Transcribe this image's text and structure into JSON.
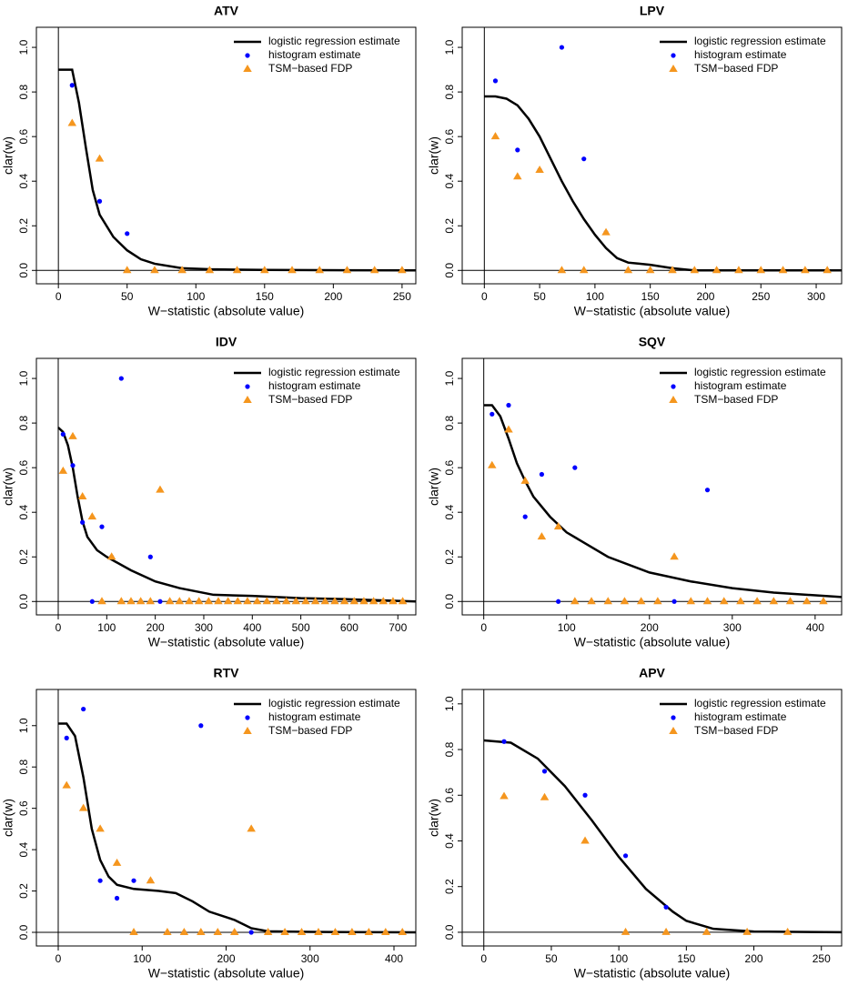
{
  "chart_data": [
    {
      "type": "scatter",
      "title": "ATV",
      "xlabel": "W−statistic (absolute value)",
      "ylabel": "clar(w)",
      "xlim": [
        -16,
        260
      ],
      "ylim": [
        -0.06,
        1.09
      ],
      "xticks": [
        0,
        50,
        100,
        150,
        200,
        250
      ],
      "yticks": [
        {
          "value": 0,
          "label": "0.0"
        },
        0.2,
        0.4,
        0.6,
        0.8,
        {
          "value": 1,
          "label": "1.0"
        }
      ],
      "legend": "topright",
      "series": [
        {
          "name": "logistic regression estimate",
          "color": "#000000",
          "marker": "line",
          "x": [
            0,
            10,
            15,
            20,
            25,
            30,
            40,
            50,
            60,
            70,
            90,
            110,
            150,
            260
          ],
          "values": [
            0.9,
            0.9,
            0.75,
            0.55,
            0.36,
            0.25,
            0.15,
            0.09,
            0.05,
            0.03,
            0.01,
            0.005,
            0.002,
            0
          ]
        },
        {
          "name": "histogram estimate",
          "color": "#0000ff",
          "marker": "circle",
          "x": [
            10,
            30,
            50,
            70,
            90,
            110,
            130,
            150,
            170,
            190,
            210,
            230,
            250
          ],
          "values": [
            0.83,
            0.31,
            0.165,
            0,
            0,
            0,
            0,
            0,
            0,
            0,
            0,
            0,
            0
          ]
        },
        {
          "name": "TSM−based FDP",
          "color": "#f5961e",
          "marker": "triangle",
          "x": [
            10,
            30,
            50,
            70,
            90,
            110,
            130,
            150,
            170,
            190,
            210,
            230,
            250
          ],
          "values": [
            0.66,
            0.5,
            0,
            0,
            0,
            0,
            0,
            0,
            0,
            0,
            0,
            0,
            0
          ]
        }
      ]
    },
    {
      "type": "scatter",
      "title": "LPV",
      "xlabel": "W−statistic (absolute value)",
      "ylabel": "clar(w)",
      "xlim": [
        -20,
        323
      ],
      "ylim": [
        -0.06,
        1.09
      ],
      "xticks": [
        0,
        50,
        100,
        150,
        200,
        250,
        300
      ],
      "yticks": [
        {
          "value": 0,
          "label": "0.0"
        },
        0.2,
        0.4,
        0.6,
        0.8,
        {
          "value": 1,
          "label": "1.0"
        }
      ],
      "legend": "topright",
      "series": [
        {
          "name": "logistic regression estimate",
          "color": "#000000",
          "marker": "line",
          "x": [
            0,
            10,
            20,
            30,
            40,
            50,
            60,
            70,
            80,
            90,
            100,
            110,
            120,
            130,
            140,
            150,
            170,
            190,
            323
          ],
          "values": [
            0.78,
            0.78,
            0.77,
            0.74,
            0.68,
            0.6,
            0.5,
            0.4,
            0.31,
            0.23,
            0.16,
            0.1,
            0.055,
            0.035,
            0.03,
            0.025,
            0.01,
            0,
            0
          ]
        },
        {
          "name": "histogram estimate",
          "color": "#0000ff",
          "marker": "circle",
          "x": [
            10,
            30,
            50,
            70,
            90,
            110,
            130,
            150,
            170,
            190,
            210,
            230,
            250,
            270,
            290,
            310
          ],
          "values": [
            0.85,
            0.54,
            0.45,
            1.0,
            0.5,
            0.17,
            0,
            0,
            0,
            0,
            0,
            0,
            0,
            0,
            0,
            0
          ]
        },
        {
          "name": "TSM−based FDP",
          "color": "#f5961e",
          "marker": "triangle",
          "x": [
            10,
            30,
            50,
            70,
            90,
            110,
            130,
            150,
            170,
            190,
            210,
            230,
            250,
            270,
            290,
            310
          ],
          "values": [
            0.6,
            0.42,
            0.45,
            0,
            0,
            0.17,
            0,
            0,
            0,
            0,
            0,
            0,
            0,
            0,
            0,
            0
          ]
        }
      ]
    },
    {
      "type": "scatter",
      "title": "IDV",
      "xlabel": "W−statistic (absolute value)",
      "ylabel": "clar(w)",
      "xlim": [
        -45,
        737
      ],
      "ylim": [
        -0.06,
        1.09
      ],
      "xticks": [
        0,
        100,
        200,
        300,
        400,
        500,
        600,
        700
      ],
      "yticks": [
        {
          "value": 0,
          "label": "0.0"
        },
        0.2,
        0.4,
        0.6,
        0.8,
        {
          "value": 1,
          "label": "1.0"
        }
      ],
      "legend": "topright",
      "series": [
        {
          "name": "logistic regression estimate",
          "color": "#000000",
          "marker": "line",
          "x": [
            0,
            10,
            20,
            30,
            40,
            50,
            60,
            80,
            100,
            150,
            200,
            250,
            320,
            400,
            500,
            600,
            737
          ],
          "values": [
            0.78,
            0.76,
            0.7,
            0.6,
            0.47,
            0.36,
            0.29,
            0.23,
            0.2,
            0.14,
            0.09,
            0.06,
            0.03,
            0.025,
            0.015,
            0.01,
            0
          ]
        },
        {
          "name": "histogram estimate",
          "color": "#0000ff",
          "marker": "circle",
          "x": [
            10,
            30,
            50,
            70,
            90,
            110,
            130,
            150,
            170,
            190,
            210,
            230,
            250,
            270,
            290,
            310,
            330,
            350,
            370,
            390,
            410,
            430,
            450,
            470,
            490,
            510,
            530,
            550,
            570,
            590,
            610,
            630,
            650,
            670,
            690,
            710
          ],
          "values": [
            0.75,
            0.61,
            0.355,
            0,
            0.335,
            0.2,
            1.0,
            0,
            0,
            0.2,
            0,
            0,
            0,
            0,
            0,
            0,
            0,
            0,
            0,
            0,
            0,
            0,
            0,
            0,
            0,
            0,
            0,
            0,
            0,
            0,
            0,
            0,
            0,
            0,
            0,
            0
          ]
        },
        {
          "name": "TSM−based FDP",
          "color": "#f5961e",
          "marker": "triangle",
          "x": [
            10,
            30,
            50,
            70,
            90,
            110,
            130,
            150,
            170,
            190,
            210,
            230,
            250,
            270,
            290,
            310,
            330,
            350,
            370,
            390,
            410,
            430,
            450,
            470,
            490,
            510,
            530,
            550,
            570,
            590,
            610,
            630,
            650,
            670,
            690,
            710
          ],
          "values": [
            0.585,
            0.74,
            0.47,
            0.38,
            0,
            0.2,
            0,
            0,
            0,
            0,
            0.5,
            0,
            0,
            0,
            0,
            0,
            0,
            0,
            0,
            0,
            0,
            0,
            0,
            0,
            0,
            0,
            0,
            0,
            0,
            0,
            0,
            0,
            0,
            0,
            0,
            0
          ]
        }
      ]
    },
    {
      "type": "scatter",
      "title": "SQV",
      "xlabel": "W−statistic (absolute value)",
      "ylabel": "clar(w)",
      "xlim": [
        -26,
        432
      ],
      "ylim": [
        -0.06,
        1.09
      ],
      "xticks": [
        0,
        100,
        200,
        300,
        400
      ],
      "yticks": [
        {
          "value": 0,
          "label": "0.0"
        },
        0.2,
        0.4,
        0.6,
        0.8,
        {
          "value": 1,
          "label": "1.0"
        }
      ],
      "legend": "topright",
      "series": [
        {
          "name": "logistic regression estimate",
          "color": "#000000",
          "marker": "line",
          "x": [
            0,
            10,
            20,
            30,
            40,
            50,
            60,
            80,
            100,
            150,
            200,
            250,
            300,
            350,
            432
          ],
          "values": [
            0.88,
            0.88,
            0.83,
            0.73,
            0.62,
            0.54,
            0.47,
            0.38,
            0.31,
            0.2,
            0.13,
            0.09,
            0.06,
            0.04,
            0.02
          ]
        },
        {
          "name": "histogram estimate",
          "color": "#0000ff",
          "marker": "circle",
          "x": [
            10,
            30,
            50,
            70,
            90,
            110,
            130,
            150,
            170,
            190,
            210,
            230,
            250,
            270,
            290,
            310,
            330,
            350,
            370,
            390,
            410
          ],
          "values": [
            0.84,
            0.88,
            0.38,
            0.57,
            0,
            0.6,
            0,
            0,
            0,
            0,
            0,
            0,
            0,
            0.5,
            0,
            0,
            0,
            0,
            0,
            0,
            0
          ]
        },
        {
          "name": "TSM−based FDP",
          "color": "#f5961e",
          "marker": "triangle",
          "x": [
            10,
            30,
            50,
            70,
            90,
            110,
            130,
            150,
            170,
            190,
            210,
            230,
            250,
            270,
            290,
            310,
            330,
            350,
            370,
            390,
            410
          ],
          "values": [
            0.61,
            0.77,
            0.54,
            0.29,
            0.335,
            0,
            0,
            0,
            0,
            0,
            0,
            0.2,
            0,
            0,
            0,
            0,
            0,
            0,
            0,
            0,
            0
          ]
        }
      ]
    },
    {
      "type": "scatter",
      "title": "RTV",
      "xlabel": "W−statistic (absolute value)",
      "ylabel": "clar(w)",
      "xlim": [
        -26,
        426
      ],
      "ylim": [
        -0.066,
        1.175
      ],
      "xticks": [
        0,
        100,
        200,
        300,
        400
      ],
      "yticks": [
        {
          "value": 0,
          "label": "0.0"
        },
        0.2,
        0.4,
        0.6,
        0.8,
        {
          "value": 1,
          "label": "1.0"
        }
      ],
      "legend": "topright",
      "series": [
        {
          "name": "logistic regression estimate",
          "color": "#000000",
          "marker": "line",
          "x": [
            0,
            10,
            20,
            30,
            40,
            50,
            60,
            70,
            90,
            120,
            140,
            160,
            180,
            210,
            230,
            250,
            300,
            426
          ],
          "values": [
            1.01,
            1.01,
            0.95,
            0.75,
            0.5,
            0.35,
            0.27,
            0.23,
            0.21,
            0.2,
            0.19,
            0.15,
            0.1,
            0.06,
            0.02,
            0.005,
            0.002,
            0
          ]
        },
        {
          "name": "histogram estimate",
          "color": "#0000ff",
          "marker": "circle",
          "x": [
            10,
            30,
            50,
            70,
            90,
            110,
            130,
            150,
            170,
            190,
            210,
            230,
            250,
            270,
            290,
            310,
            330,
            350,
            370,
            390,
            410
          ],
          "values": [
            0.94,
            1.08,
            0.25,
            0.165,
            0.25,
            0.25,
            0,
            0,
            1.0,
            0,
            0,
            0,
            0,
            0,
            0,
            0,
            0,
            0,
            0,
            0,
            0
          ]
        },
        {
          "name": "TSM−based FDP",
          "color": "#f5961e",
          "marker": "triangle",
          "x": [
            10,
            30,
            50,
            70,
            90,
            110,
            130,
            150,
            170,
            190,
            210,
            230,
            250,
            270,
            290,
            310,
            330,
            350,
            370,
            390,
            410
          ],
          "values": [
            0.71,
            0.6,
            0.5,
            0.335,
            0,
            0.25,
            0,
            0,
            0,
            0,
            0,
            0.5,
            0,
            0,
            0,
            0,
            0,
            0,
            0,
            0,
            0
          ]
        }
      ]
    },
    {
      "type": "scatter",
      "title": "APV",
      "xlabel": "W−statistic (absolute value)",
      "ylabel": "clar(w)",
      "xlim": [
        -16,
        265
      ],
      "ylim": [
        -0.06,
        1.063
      ],
      "xticks": [
        0,
        50,
        100,
        150,
        200,
        250
      ],
      "yticks": [
        {
          "value": 0,
          "label": "0.0"
        },
        0.2,
        0.4,
        0.6,
        0.8,
        {
          "value": 1,
          "label": "1.0"
        }
      ],
      "legend": "topright",
      "series": [
        {
          "name": "logistic regression estimate",
          "color": "#000000",
          "marker": "line",
          "x": [
            0,
            20,
            40,
            60,
            80,
            100,
            120,
            140,
            150,
            170,
            200,
            265
          ],
          "values": [
            0.84,
            0.83,
            0.76,
            0.64,
            0.49,
            0.33,
            0.19,
            0.09,
            0.05,
            0.015,
            0.003,
            0
          ]
        },
        {
          "name": "histogram estimate",
          "color": "#0000ff",
          "marker": "circle",
          "x": [
            15,
            45,
            75,
            105,
            135,
            165,
            195,
            225
          ],
          "values": [
            0.835,
            0.705,
            0.6,
            0.335,
            0.11,
            0,
            0,
            0
          ]
        },
        {
          "name": "TSM−based FDP",
          "color": "#f5961e",
          "marker": "triangle",
          "x": [
            15,
            45,
            75,
            105,
            135,
            165,
            195,
            225
          ],
          "values": [
            0.595,
            0.59,
            0.4,
            0,
            0,
            0,
            0,
            0
          ]
        }
      ]
    }
  ]
}
